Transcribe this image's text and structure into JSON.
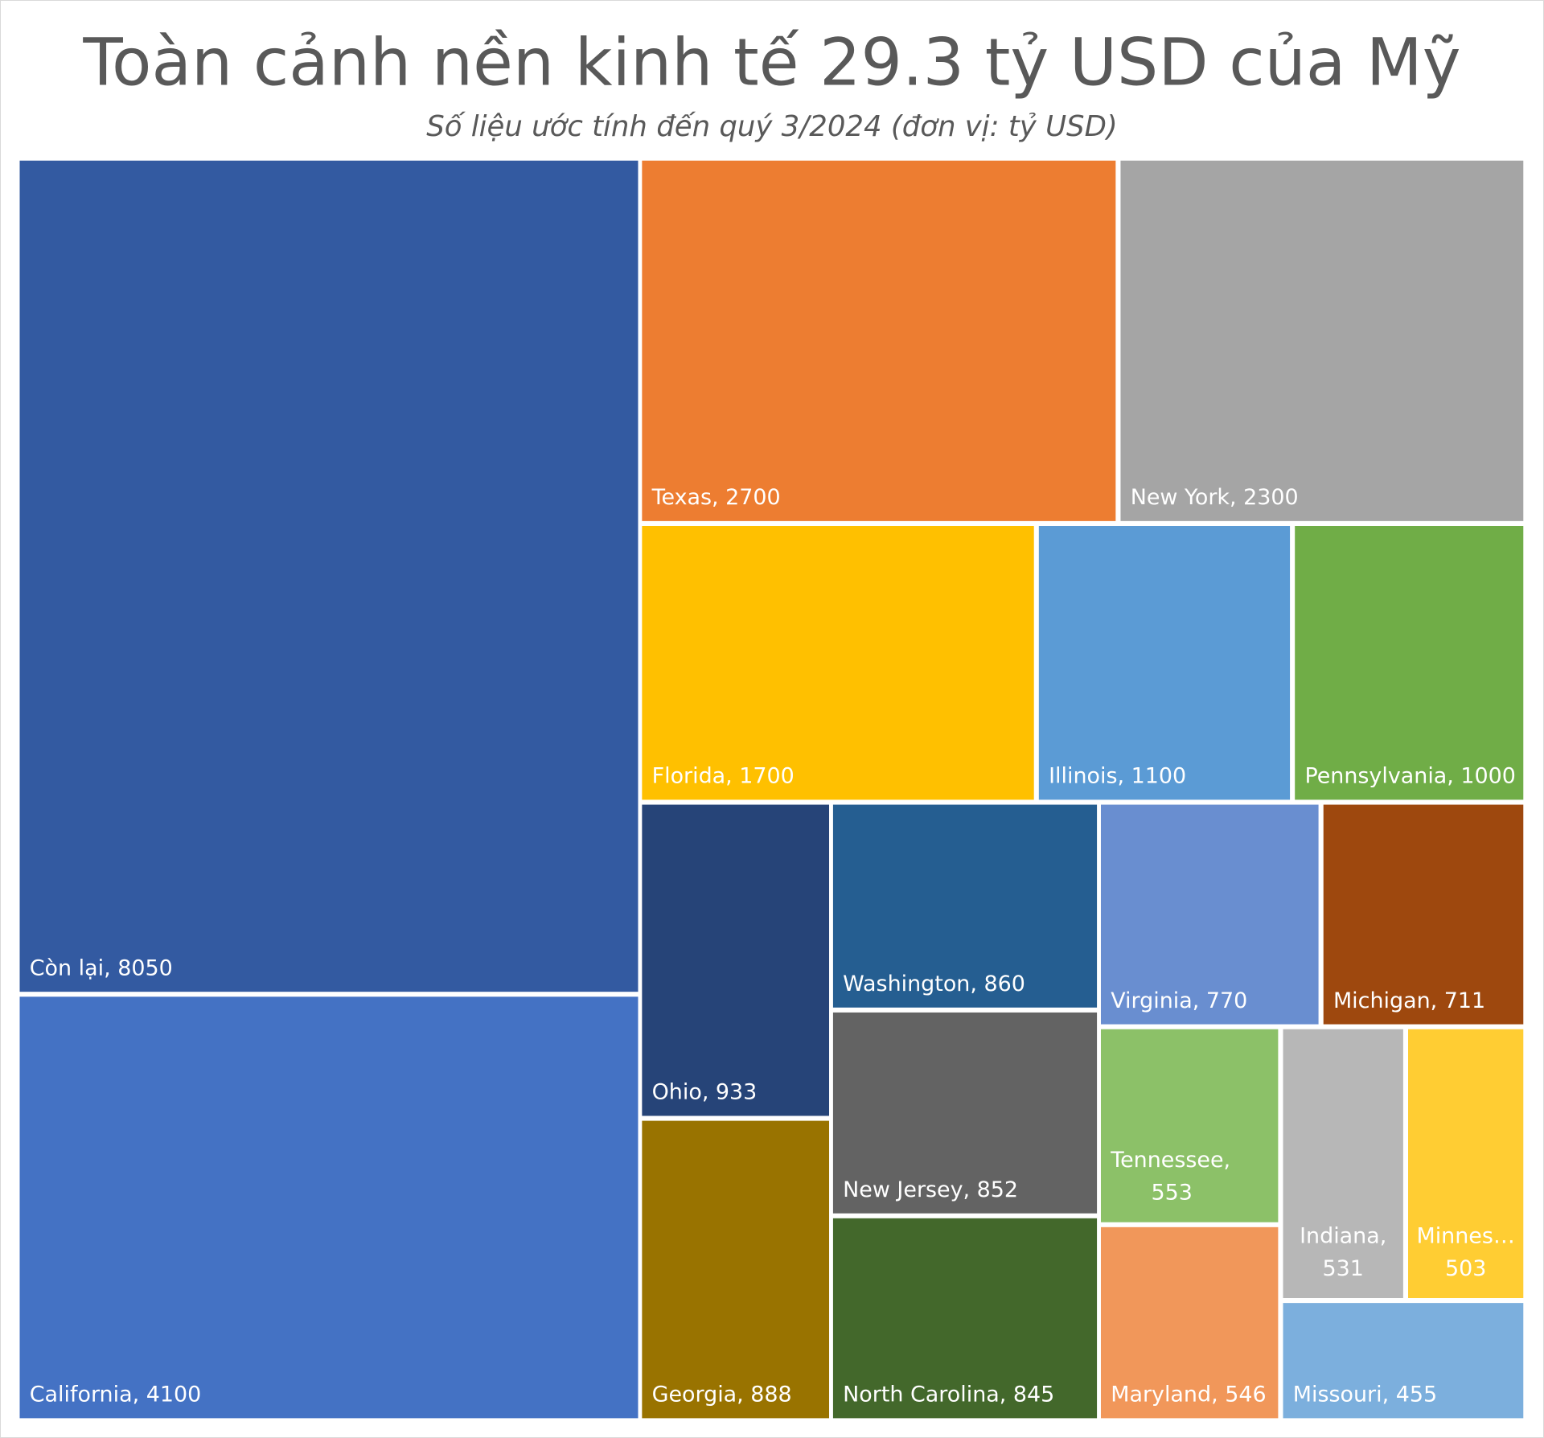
{
  "chart_data": {
    "type": "treemap",
    "title": "Toàn cảnh nền kinh tế 29.3 tỷ USD của Mỹ",
    "subtitle": "Số liệu ước tính đến quý 3/2024 (đơn vị: tỷ USD)",
    "items": [
      {
        "name": "Còn lại",
        "value": 8050,
        "label": "Còn lại, 8050",
        "color": "#335AA1"
      },
      {
        "name": "California",
        "value": 4100,
        "label": "California, 4100",
        "color": "#4472C4"
      },
      {
        "name": "Texas",
        "value": 2700,
        "label": "Texas, 2700",
        "color": "#ED7D31"
      },
      {
        "name": "New York",
        "value": 2300,
        "label": "New York, 2300",
        "color": "#A5A5A5"
      },
      {
        "name": "Florida",
        "value": 1700,
        "label": "Florida, 1700",
        "color": "#FFC000"
      },
      {
        "name": "Illinois",
        "value": 1100,
        "label": "Illinois, 1100",
        "color": "#5B9BD5"
      },
      {
        "name": "Pennsylvania",
        "value": 1000,
        "label": "Pennsylvania, 1000",
        "color": "#70AD47"
      },
      {
        "name": "Ohio",
        "value": 933,
        "label": "Ohio, 933",
        "color": "#264478"
      },
      {
        "name": "Georgia",
        "value": 888,
        "label": "Georgia, 888",
        "color": "#997300"
      },
      {
        "name": "Washington",
        "value": 860,
        "label": "Washington, 860",
        "color": "#255E91"
      },
      {
        "name": "New Jersey",
        "value": 852,
        "label": "New Jersey, 852",
        "color": "#636363"
      },
      {
        "name": "North Carolina",
        "value": 845,
        "label": "North Carolina, 845",
        "color": "#43682B"
      },
      {
        "name": "Virginia",
        "value": 770,
        "label": "Virginia, 770",
        "color": "#698ED0"
      },
      {
        "name": "Michigan",
        "value": 711,
        "label": "Michigan, 711",
        "color": "#9E480E"
      },
      {
        "name": "Tennessee",
        "value": 553,
        "label": "Tennessee,|553",
        "color": "#8CC168"
      },
      {
        "name": "Maryland",
        "value": 546,
        "label": "Maryland, 546",
        "color": "#F1975A"
      },
      {
        "name": "Indiana",
        "value": 531,
        "label": "Indiana,|531",
        "color": "#B7B7B7"
      },
      {
        "name": "Minnes…",
        "value": 503,
        "label": "Minnes…|503",
        "color": "#FFCD33"
      },
      {
        "name": "Missouri",
        "value": 455,
        "label": "Missouri, 455",
        "color": "#7CAFDD"
      }
    ]
  }
}
